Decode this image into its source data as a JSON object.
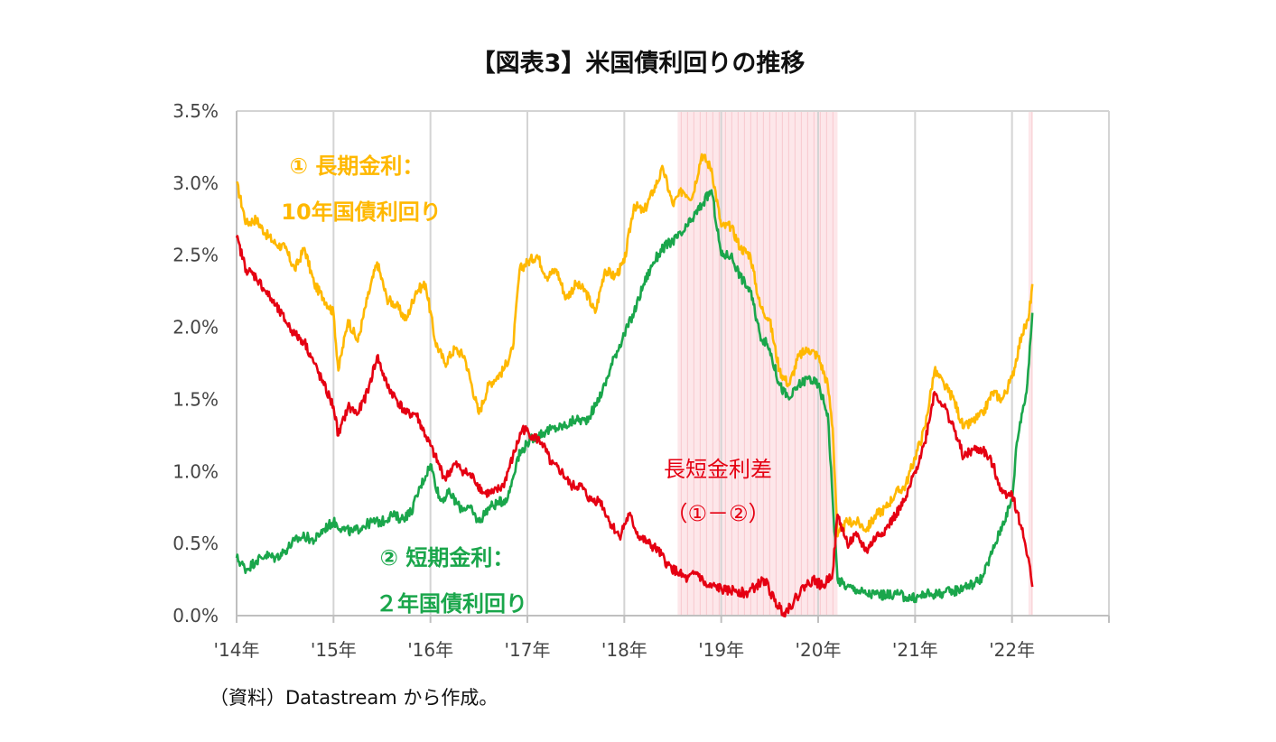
{
  "title": "【図表3】米国債利回りの推移",
  "source": "（資料）Datastream から作成。",
  "chart_data": {
    "type": "line",
    "title": "【図表3】米国債利回りの推移",
    "xlabel": "",
    "ylabel": "",
    "xlim": [
      2014.0,
      2023.0
    ],
    "ylim": [
      0.0,
      3.5
    ],
    "y_ticks": [
      "0.0%",
      "0.5%",
      "1.0%",
      "1.5%",
      "2.0%",
      "2.5%",
      "3.0%",
      "3.5%"
    ],
    "y_tick_values": [
      0.0,
      0.5,
      1.0,
      1.5,
      2.0,
      2.5,
      3.0,
      3.5
    ],
    "x_ticks": [
      "'14年",
      "'15年",
      "'16年",
      "'17年",
      "'18年",
      "'19年",
      "'20年",
      "'21年",
      "'22年"
    ],
    "x_tick_values": [
      2014,
      2015,
      2016,
      2017,
      2018,
      2019,
      2020,
      2021,
      2022
    ],
    "grid": "vertical",
    "legend": "none",
    "shaded_periods": [
      {
        "start": 2018.55,
        "end": 2020.2
      },
      {
        "start": 2022.17,
        "end": 2022.21
      }
    ],
    "annotations": {
      "long_rate_line1": "① 長期金利：",
      "long_rate_line2": "10年国債利回り",
      "short_rate_line1": "② 短期金利：",
      "short_rate_line2": "２年国債利回り",
      "spread_line1": "長短金利差",
      "spread_line2": "（①－②）"
    },
    "series": [
      {
        "key": "long",
        "color": "#FFB800",
        "points": [
          [
            2014.0,
            3.0
          ],
          [
            2014.1,
            2.72
          ],
          [
            2014.2,
            2.75
          ],
          [
            2014.3,
            2.65
          ],
          [
            2014.4,
            2.58
          ],
          [
            2014.5,
            2.55
          ],
          [
            2014.6,
            2.4
          ],
          [
            2014.7,
            2.55
          ],
          [
            2014.8,
            2.3
          ],
          [
            2014.9,
            2.2
          ],
          [
            2015.0,
            2.1
          ],
          [
            2015.05,
            1.7
          ],
          [
            2015.15,
            2.05
          ],
          [
            2015.25,
            1.9
          ],
          [
            2015.35,
            2.2
          ],
          [
            2015.45,
            2.45
          ],
          [
            2015.55,
            2.2
          ],
          [
            2015.65,
            2.15
          ],
          [
            2015.75,
            2.05
          ],
          [
            2015.85,
            2.25
          ],
          [
            2015.95,
            2.3
          ],
          [
            2016.05,
            1.9
          ],
          [
            2016.15,
            1.75
          ],
          [
            2016.25,
            1.85
          ],
          [
            2016.35,
            1.8
          ],
          [
            2016.5,
            1.4
          ],
          [
            2016.6,
            1.6
          ],
          [
            2016.75,
            1.7
          ],
          [
            2016.85,
            1.85
          ],
          [
            2016.92,
            2.4
          ],
          [
            2017.0,
            2.45
          ],
          [
            2017.1,
            2.5
          ],
          [
            2017.2,
            2.35
          ],
          [
            2017.3,
            2.4
          ],
          [
            2017.4,
            2.2
          ],
          [
            2017.5,
            2.3
          ],
          [
            2017.6,
            2.25
          ],
          [
            2017.7,
            2.1
          ],
          [
            2017.8,
            2.4
          ],
          [
            2017.9,
            2.35
          ],
          [
            2018.0,
            2.45
          ],
          [
            2018.1,
            2.85
          ],
          [
            2018.2,
            2.8
          ],
          [
            2018.3,
            2.95
          ],
          [
            2018.4,
            3.1
          ],
          [
            2018.5,
            2.85
          ],
          [
            2018.6,
            2.95
          ],
          [
            2018.7,
            2.9
          ],
          [
            2018.8,
            3.2
          ],
          [
            2018.9,
            3.1
          ],
          [
            2019.0,
            2.7
          ],
          [
            2019.1,
            2.7
          ],
          [
            2019.2,
            2.55
          ],
          [
            2019.3,
            2.5
          ],
          [
            2019.4,
            2.15
          ],
          [
            2019.5,
            2.05
          ],
          [
            2019.6,
            1.7
          ],
          [
            2019.7,
            1.6
          ],
          [
            2019.8,
            1.8
          ],
          [
            2019.9,
            1.85
          ],
          [
            2020.0,
            1.8
          ],
          [
            2020.1,
            1.6
          ],
          [
            2020.15,
            1.3
          ],
          [
            2020.2,
            0.55
          ],
          [
            2020.3,
            0.65
          ],
          [
            2020.4,
            0.65
          ],
          [
            2020.5,
            0.6
          ],
          [
            2020.6,
            0.7
          ],
          [
            2020.7,
            0.75
          ],
          [
            2020.8,
            0.85
          ],
          [
            2020.9,
            0.9
          ],
          [
            2021.0,
            1.1
          ],
          [
            2021.1,
            1.3
          ],
          [
            2021.2,
            1.7
          ],
          [
            2021.3,
            1.6
          ],
          [
            2021.4,
            1.5
          ],
          [
            2021.5,
            1.3
          ],
          [
            2021.6,
            1.35
          ],
          [
            2021.7,
            1.4
          ],
          [
            2021.8,
            1.55
          ],
          [
            2021.9,
            1.5
          ],
          [
            2022.0,
            1.65
          ],
          [
            2022.1,
            1.95
          ],
          [
            2022.17,
            2.05
          ],
          [
            2022.21,
            2.3
          ]
        ]
      },
      {
        "key": "short",
        "color": "#1AA64B",
        "points": [
          [
            2014.0,
            0.4
          ],
          [
            2014.1,
            0.32
          ],
          [
            2014.2,
            0.38
          ],
          [
            2014.3,
            0.42
          ],
          [
            2014.4,
            0.4
          ],
          [
            2014.5,
            0.45
          ],
          [
            2014.6,
            0.52
          ],
          [
            2014.7,
            0.55
          ],
          [
            2014.8,
            0.52
          ],
          [
            2014.9,
            0.6
          ],
          [
            2015.0,
            0.65
          ],
          [
            2015.1,
            0.6
          ],
          [
            2015.2,
            0.58
          ],
          [
            2015.3,
            0.62
          ],
          [
            2015.4,
            0.65
          ],
          [
            2015.5,
            0.65
          ],
          [
            2015.6,
            0.7
          ],
          [
            2015.7,
            0.67
          ],
          [
            2015.8,
            0.72
          ],
          [
            2015.9,
            0.9
          ],
          [
            2016.0,
            1.05
          ],
          [
            2016.1,
            0.8
          ],
          [
            2016.2,
            0.85
          ],
          [
            2016.3,
            0.75
          ],
          [
            2016.4,
            0.75
          ],
          [
            2016.5,
            0.65
          ],
          [
            2016.6,
            0.75
          ],
          [
            2016.7,
            0.78
          ],
          [
            2016.8,
            0.82
          ],
          [
            2016.9,
            1.1
          ],
          [
            2017.0,
            1.2
          ],
          [
            2017.1,
            1.25
          ],
          [
            2017.2,
            1.28
          ],
          [
            2017.3,
            1.3
          ],
          [
            2017.4,
            1.32
          ],
          [
            2017.5,
            1.36
          ],
          [
            2017.6,
            1.35
          ],
          [
            2017.7,
            1.45
          ],
          [
            2017.8,
            1.6
          ],
          [
            2017.9,
            1.8
          ],
          [
            2018.0,
            1.95
          ],
          [
            2018.1,
            2.1
          ],
          [
            2018.2,
            2.3
          ],
          [
            2018.3,
            2.45
          ],
          [
            2018.4,
            2.55
          ],
          [
            2018.5,
            2.6
          ],
          [
            2018.6,
            2.65
          ],
          [
            2018.7,
            2.75
          ],
          [
            2018.8,
            2.85
          ],
          [
            2018.9,
            2.95
          ],
          [
            2019.0,
            2.5
          ],
          [
            2019.1,
            2.5
          ],
          [
            2019.2,
            2.35
          ],
          [
            2019.3,
            2.25
          ],
          [
            2019.4,
            1.95
          ],
          [
            2019.5,
            1.85
          ],
          [
            2019.6,
            1.6
          ],
          [
            2019.7,
            1.5
          ],
          [
            2019.8,
            1.6
          ],
          [
            2019.9,
            1.65
          ],
          [
            2020.0,
            1.6
          ],
          [
            2020.1,
            1.4
          ],
          [
            2020.15,
            0.8
          ],
          [
            2020.2,
            0.25
          ],
          [
            2020.3,
            0.2
          ],
          [
            2020.4,
            0.18
          ],
          [
            2020.5,
            0.15
          ],
          [
            2020.6,
            0.15
          ],
          [
            2020.7,
            0.14
          ],
          [
            2020.8,
            0.15
          ],
          [
            2020.9,
            0.13
          ],
          [
            2021.0,
            0.12
          ],
          [
            2021.1,
            0.15
          ],
          [
            2021.2,
            0.15
          ],
          [
            2021.3,
            0.16
          ],
          [
            2021.4,
            0.17
          ],
          [
            2021.5,
            0.2
          ],
          [
            2021.6,
            0.22
          ],
          [
            2021.7,
            0.27
          ],
          [
            2021.8,
            0.45
          ],
          [
            2021.9,
            0.63
          ],
          [
            2022.0,
            0.8
          ],
          [
            2022.05,
            1.2
          ],
          [
            2022.1,
            1.4
          ],
          [
            2022.15,
            1.55
          ],
          [
            2022.21,
            2.1
          ]
        ]
      },
      {
        "key": "spread",
        "color": "#E50012",
        "points": [
          [
            2014.0,
            2.62
          ],
          [
            2014.1,
            2.4
          ],
          [
            2014.2,
            2.35
          ],
          [
            2014.3,
            2.25
          ],
          [
            2014.4,
            2.15
          ],
          [
            2014.5,
            2.05
          ],
          [
            2014.6,
            1.95
          ],
          [
            2014.7,
            1.9
          ],
          [
            2014.8,
            1.75
          ],
          [
            2014.9,
            1.6
          ],
          [
            2015.0,
            1.45
          ],
          [
            2015.05,
            1.25
          ],
          [
            2015.15,
            1.45
          ],
          [
            2015.25,
            1.4
          ],
          [
            2015.35,
            1.55
          ],
          [
            2015.45,
            1.8
          ],
          [
            2015.55,
            1.6
          ],
          [
            2015.65,
            1.5
          ],
          [
            2015.75,
            1.4
          ],
          [
            2015.85,
            1.4
          ],
          [
            2015.95,
            1.25
          ],
          [
            2016.05,
            1.1
          ],
          [
            2016.15,
            0.95
          ],
          [
            2016.25,
            1.05
          ],
          [
            2016.35,
            1.0
          ],
          [
            2016.45,
            0.95
          ],
          [
            2016.55,
            0.85
          ],
          [
            2016.65,
            0.85
          ],
          [
            2016.75,
            0.9
          ],
          [
            2016.85,
            1.1
          ],
          [
            2016.95,
            1.3
          ],
          [
            2017.05,
            1.25
          ],
          [
            2017.15,
            1.2
          ],
          [
            2017.25,
            1.05
          ],
          [
            2017.35,
            1.0
          ],
          [
            2017.45,
            0.9
          ],
          [
            2017.55,
            0.9
          ],
          [
            2017.65,
            0.8
          ],
          [
            2017.75,
            0.8
          ],
          [
            2017.85,
            0.65
          ],
          [
            2017.95,
            0.55
          ],
          [
            2018.05,
            0.7
          ],
          [
            2018.15,
            0.55
          ],
          [
            2018.25,
            0.5
          ],
          [
            2018.35,
            0.45
          ],
          [
            2018.45,
            0.35
          ],
          [
            2018.55,
            0.3
          ],
          [
            2018.65,
            0.25
          ],
          [
            2018.75,
            0.3
          ],
          [
            2018.85,
            0.2
          ],
          [
            2018.95,
            0.2
          ],
          [
            2019.05,
            0.17
          ],
          [
            2019.15,
            0.18
          ],
          [
            2019.25,
            0.15
          ],
          [
            2019.35,
            0.2
          ],
          [
            2019.45,
            0.25
          ],
          [
            2019.55,
            0.1
          ],
          [
            2019.65,
            0.02
          ],
          [
            2019.75,
            0.1
          ],
          [
            2019.85,
            0.2
          ],
          [
            2019.95,
            0.25
          ],
          [
            2020.05,
            0.2
          ],
          [
            2020.15,
            0.3
          ],
          [
            2020.2,
            0.7
          ],
          [
            2020.3,
            0.5
          ],
          [
            2020.4,
            0.55
          ],
          [
            2020.5,
            0.45
          ],
          [
            2020.6,
            0.55
          ],
          [
            2020.7,
            0.6
          ],
          [
            2020.8,
            0.7
          ],
          [
            2020.9,
            0.8
          ],
          [
            2021.0,
            1.0
          ],
          [
            2021.1,
            1.2
          ],
          [
            2021.2,
            1.55
          ],
          [
            2021.3,
            1.45
          ],
          [
            2021.4,
            1.3
          ],
          [
            2021.5,
            1.1
          ],
          [
            2021.6,
            1.15
          ],
          [
            2021.7,
            1.15
          ],
          [
            2021.8,
            1.05
          ],
          [
            2021.9,
            0.85
          ],
          [
            2022.0,
            0.85
          ],
          [
            2022.1,
            0.6
          ],
          [
            2022.17,
            0.4
          ],
          [
            2022.21,
            0.2
          ]
        ]
      }
    ]
  }
}
